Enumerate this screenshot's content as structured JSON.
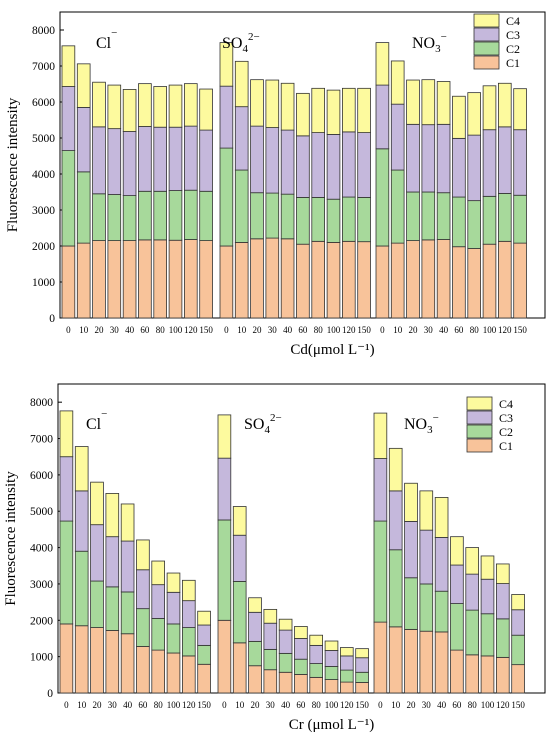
{
  "chart_data": [
    {
      "type": "bar",
      "stacked": true,
      "ylabel": "Fluorescence intensity",
      "xlabel": "Cd(μmol L⁻¹)",
      "ylim": [
        0,
        8500
      ],
      "yticks": [
        0,
        1000,
        2000,
        3000,
        4000,
        5000,
        6000,
        7000,
        8000
      ],
      "categories": [
        "0",
        "10",
        "20",
        "30",
        "40",
        "60",
        "80",
        "100",
        "120",
        "150"
      ],
      "groups": [
        {
          "label": "Cl⁻",
          "series": [
            {
              "name": "C1",
              "values": [
                2000,
                2080,
                2150,
                2150,
                2150,
                2170,
                2170,
                2160,
                2180,
                2150
              ]
            },
            {
              "name": "C2",
              "values": [
                2650,
                1980,
                1300,
                1280,
                1250,
                1350,
                1350,
                1380,
                1370,
                1370
              ]
            },
            {
              "name": "C3",
              "values": [
                1780,
                1790,
                1860,
                1830,
                1780,
                1800,
                1780,
                1760,
                1780,
                1700
              ]
            },
            {
              "name": "C4",
              "values": [
                1130,
                1210,
                1240,
                1210,
                1170,
                1190,
                1130,
                1170,
                1180,
                1140
              ]
            }
          ]
        },
        {
          "label": "SO₄²⁻",
          "series": [
            {
              "name": "C1",
              "values": [
                2000,
                2100,
                2200,
                2220,
                2200,
                2050,
                2130,
                2100,
                2130,
                2120
              ]
            },
            {
              "name": "C2",
              "values": [
                2720,
                2010,
                1280,
                1250,
                1240,
                1300,
                1220,
                1200,
                1230,
                1230
              ]
            },
            {
              "name": "C3",
              "values": [
                1720,
                1760,
                1850,
                1820,
                1780,
                1710,
                1800,
                1800,
                1810,
                1800
              ]
            },
            {
              "name": "C4",
              "values": [
                1210,
                1260,
                1290,
                1320,
                1300,
                1180,
                1230,
                1230,
                1210,
                1230
              ]
            }
          ]
        },
        {
          "label": "NO₃⁻",
          "series": [
            {
              "name": "C1",
              "values": [
                2000,
                2080,
                2150,
                2170,
                2180,
                1980,
                1930,
                2050,
                2130,
                2080
              ]
            },
            {
              "name": "C2",
              "values": [
                2700,
                2030,
                1350,
                1330,
                1300,
                1380,
                1330,
                1330,
                1330,
                1330
              ]
            },
            {
              "name": "C3",
              "values": [
                1770,
                1830,
                1880,
                1870,
                1900,
                1630,
                1820,
                1850,
                1850,
                1820
              ]
            },
            {
              "name": "C4",
              "values": [
                1180,
                1200,
                1230,
                1250,
                1190,
                1170,
                1180,
                1220,
                1210,
                1140
              ]
            }
          ]
        }
      ]
    },
    {
      "type": "bar",
      "stacked": true,
      "ylabel": "Fluorescence intensity",
      "xlabel": "Cr (μmol L⁻¹)",
      "ylim": [
        0,
        8500
      ],
      "yticks": [
        0,
        1000,
        2000,
        3000,
        4000,
        5000,
        6000,
        7000,
        8000
      ],
      "categories": [
        "0",
        "10",
        "20",
        "30",
        "40",
        "60",
        "80",
        "100",
        "120",
        "150"
      ],
      "groups": [
        {
          "label": "Cl⁻",
          "series": [
            {
              "name": "C1",
              "values": [
                1900,
                1850,
                1800,
                1720,
                1630,
                1280,
                1180,
                1100,
                1020,
                790
              ]
            },
            {
              "name": "C2",
              "values": [
                2830,
                2050,
                1280,
                1200,
                1150,
                1040,
                870,
                800,
                780,
                520
              ]
            },
            {
              "name": "C3",
              "values": [
                1770,
                1660,
                1550,
                1380,
                1400,
                1070,
                930,
                870,
                740,
                560
              ]
            },
            {
              "name": "C4",
              "values": [
                1260,
                1220,
                1170,
                1190,
                1020,
                820,
                650,
                530,
                560,
                380
              ]
            }
          ]
        },
        {
          "label": "SO₄²⁻",
          "series": [
            {
              "name": "C1",
              "values": [
                2000,
                1380,
                750,
                640,
                570,
                510,
                430,
                370,
                300,
                290
              ]
            },
            {
              "name": "C2",
              "values": [
                2760,
                1690,
                670,
                560,
                520,
                420,
                380,
                360,
                330,
                280
              ]
            },
            {
              "name": "C3",
              "values": [
                1700,
                1270,
                800,
                720,
                640,
                570,
                500,
                440,
                390,
                400
              ]
            },
            {
              "name": "C4",
              "values": [
                1190,
                790,
                400,
                380,
                300,
                330,
                280,
                260,
                230,
                250
              ]
            }
          ]
        },
        {
          "label": "NO₃⁻",
          "series": [
            {
              "name": "C1",
              "values": [
                1950,
                1820,
                1750,
                1700,
                1680,
                1180,
                1050,
                1020,
                980,
                780
              ]
            },
            {
              "name": "C2",
              "values": [
                2780,
                2120,
                1420,
                1300,
                1120,
                1280,
                1230,
                1160,
                1060,
                810
              ]
            },
            {
              "name": "C3",
              "values": [
                1720,
                1620,
                1550,
                1480,
                1480,
                1060,
                990,
                950,
                970,
                700
              ]
            },
            {
              "name": "C4",
              "values": [
                1250,
                1170,
                1050,
                1080,
                1100,
                780,
                730,
                640,
                540,
                420
              ]
            }
          ]
        }
      ]
    }
  ],
  "colors": {
    "C1": "#f8c39a",
    "C2": "#a7d99b",
    "C3": "#c5b8dc",
    "C4": "#fdfa9e"
  }
}
